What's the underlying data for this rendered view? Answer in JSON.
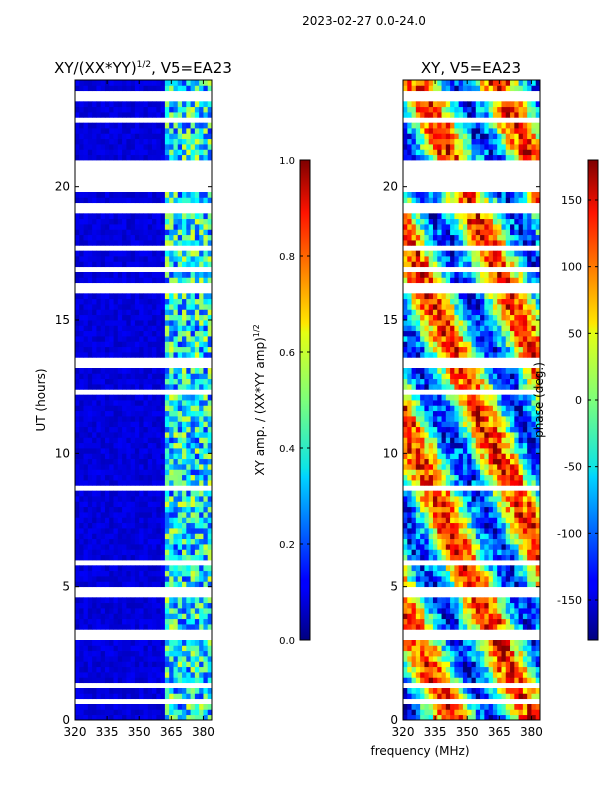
{
  "figure": {
    "suptitle": "2023-02-27 0.0-24.0",
    "xlabel": "frequency (MHz)"
  },
  "chart_data": [
    {
      "type": "heatmap",
      "title_main": "XY/(XX*YY)",
      "title_sup": "1/2",
      "title_rest": ", V5=EA23",
      "ylabel": "UT (hours)",
      "xlim": [
        320,
        384
      ],
      "ylim": [
        0,
        24
      ],
      "xticks": [
        320,
        335,
        350,
        365,
        380
      ],
      "yticks": [
        0,
        5,
        10,
        15,
        20
      ],
      "colormap": "jet",
      "notes": "Mostly low normalized amplitude below 362 MHz; speckled higher amplitude above ~362 MHz; horizontal white gaps (flagged data); blank 19.7-21 h"
    },
    {
      "type": "colorbar",
      "label_main": "XY amp. / (XX*YY amp)",
      "label_sup": "1/2",
      "range": [
        0.0,
        1.0
      ],
      "ticks": [
        "0.0",
        "0.2",
        "0.4",
        "0.6",
        "0.8",
        "1.0"
      ],
      "colormap": "jet"
    },
    {
      "type": "heatmap",
      "title": "XY, V5=EA23",
      "xlim": [
        320,
        384
      ],
      "ylim": [
        0,
        24
      ],
      "xticks": [
        320,
        335,
        350,
        365,
        380
      ],
      "yticks": [
        0,
        5,
        10,
        15,
        20
      ],
      "colormap": "jet",
      "notes": "Phase varies across full range; horizontal white gaps (flagged data); blank 19.7-21 h"
    },
    {
      "type": "colorbar",
      "label": "phase (deg.)",
      "range": [
        -180,
        180
      ],
      "ticks": [
        "-150",
        "-100",
        "-50",
        "0",
        "50",
        "100",
        "150"
      ],
      "colormap": "jet"
    }
  ]
}
